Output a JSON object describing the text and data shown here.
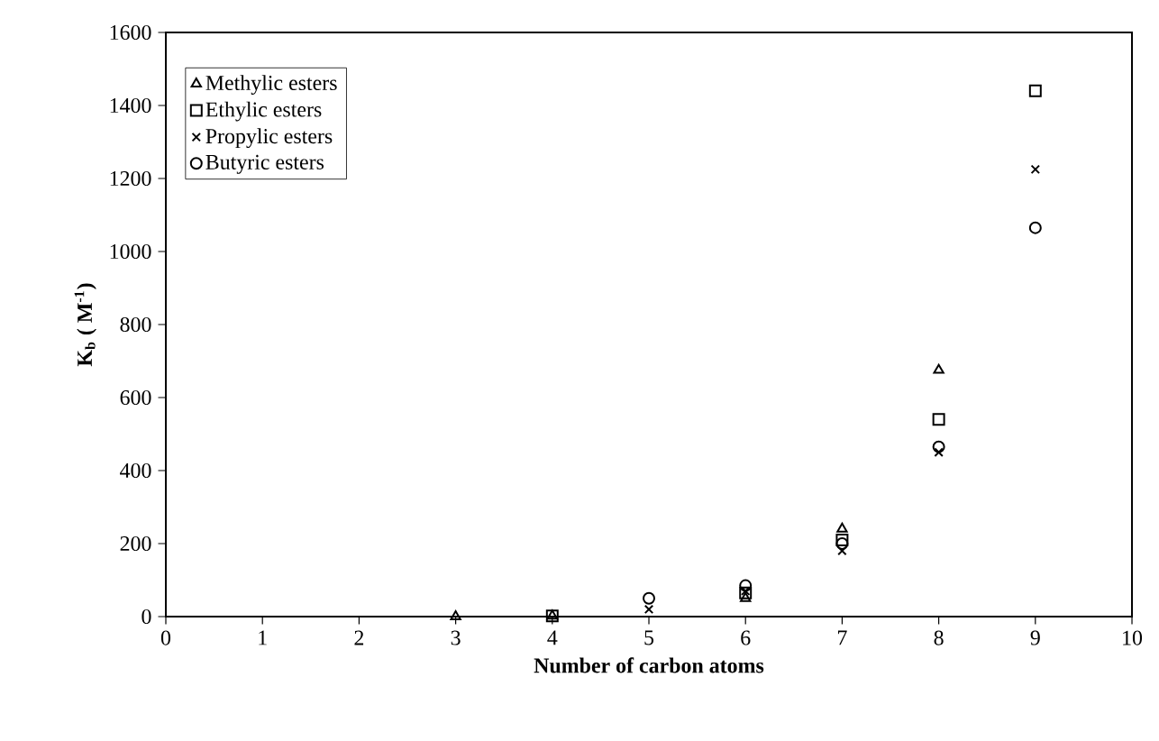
{
  "chart_data": {
    "type": "scatter",
    "xlabel": "Number of carbon atoms",
    "ylabel": "K$_{b}$ ( M$^{-1}$)",
    "x": [
      3,
      4,
      5,
      6,
      7,
      8,
      9
    ],
    "series": [
      {
        "name": "Methylic esters",
        "color": "#000000",
        "marker": "triangle",
        "values": [
          0,
          2,
          null,
          50,
          240,
          675,
          null
        ]
      },
      {
        "name": "Ethylic esters",
        "color": "#000000",
        "marker": "square",
        "values": [
          null,
          2,
          null,
          65,
          210,
          540,
          1440
        ]
      },
      {
        "name": "Propylic esters",
        "color": "#000000",
        "marker": "cross",
        "values": [
          null,
          null,
          20,
          70,
          180,
          450,
          1225
        ]
      },
      {
        "name": "Butyric esters",
        "color": "#000000",
        "marker": "circle",
        "values": [
          null,
          null,
          50,
          85,
          200,
          465,
          1065
        ]
      }
    ],
    "xlim": [
      0,
      10
    ],
    "xticks": [
      0,
      1,
      2,
      3,
      4,
      5,
      6,
      7,
      8,
      9,
      10
    ],
    "ylim": [
      0,
      1600
    ],
    "yticks": [
      0,
      200,
      400,
      600,
      800,
      1000,
      1200,
      1400,
      1600
    ],
    "grid": false,
    "legend": "top left"
  }
}
